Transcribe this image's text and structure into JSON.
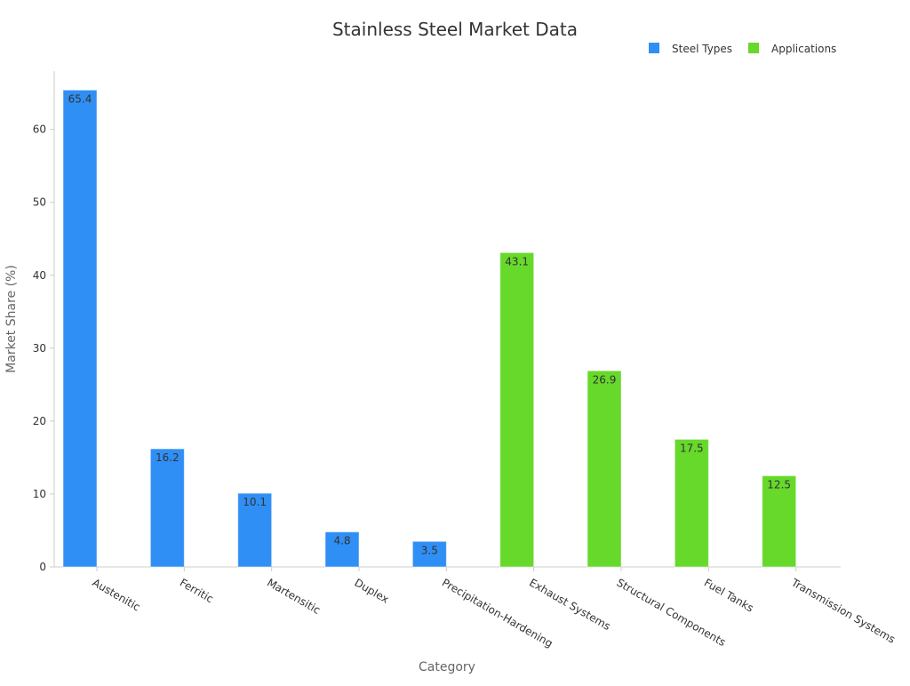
{
  "chart_data": {
    "type": "bar",
    "title": "Stainless Steel Market Data",
    "xlabel": "Category",
    "ylabel": "Market Share (%)",
    "ylim": [
      0,
      68
    ],
    "yticks": [
      0,
      10,
      20,
      30,
      40,
      50,
      60
    ],
    "grid": false,
    "legend_position": "top-right",
    "categories": [
      "Austenitic",
      "Ferritic",
      "Martensitic",
      "Duplex",
      "Precipitation-Hardening",
      "Exhaust Systems",
      "Structural Components",
      "Fuel Tanks",
      "Transmission Systems"
    ],
    "series": [
      {
        "name": "Steel Types",
        "color": "#2f8ff5",
        "values": [
          65.4,
          16.2,
          10.1,
          4.8,
          3.5,
          null,
          null,
          null,
          null
        ]
      },
      {
        "name": "Applications",
        "color": "#66d92b",
        "values": [
          null,
          null,
          null,
          null,
          null,
          43.1,
          26.9,
          17.5,
          12.5
        ]
      }
    ]
  }
}
